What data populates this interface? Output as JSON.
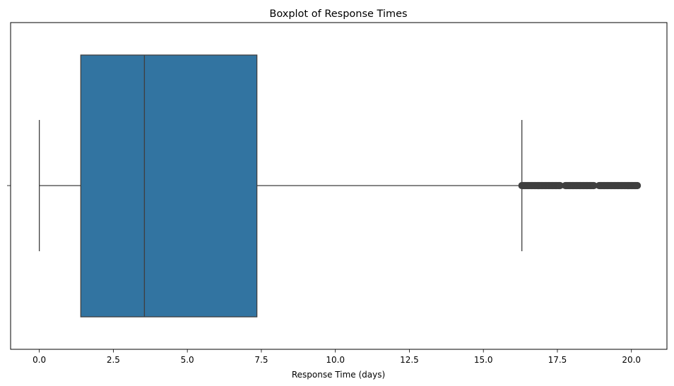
{
  "chart_data": {
    "type": "boxplot",
    "title": "Boxplot of Response Times",
    "xlabel": "Response Time (days)",
    "ylabel": "",
    "xlim": [
      -0.97,
      21.2
    ],
    "xticks": [
      0.0,
      2.5,
      5.0,
      7.5,
      10.0,
      12.5,
      15.0,
      17.5,
      20.0
    ],
    "xtick_labels": [
      "0.0",
      "2.5",
      "5.0",
      "7.5",
      "10.0",
      "12.5",
      "15.0",
      "17.5",
      "20.0"
    ],
    "orientation": "horizontal",
    "grid": false,
    "box": {
      "whisker_low": 0.0,
      "q1": 1.4,
      "median": 3.55,
      "q3": 7.35,
      "whisker_high": 16.3
    },
    "outliers": {
      "min": 16.3,
      "max": 20.2,
      "description_range": [
        16.3,
        20.2
      ]
    },
    "colors": {
      "box_fill": "#3274a1",
      "line": "#3f3f3f",
      "outlier": "#3f3f3f"
    }
  }
}
